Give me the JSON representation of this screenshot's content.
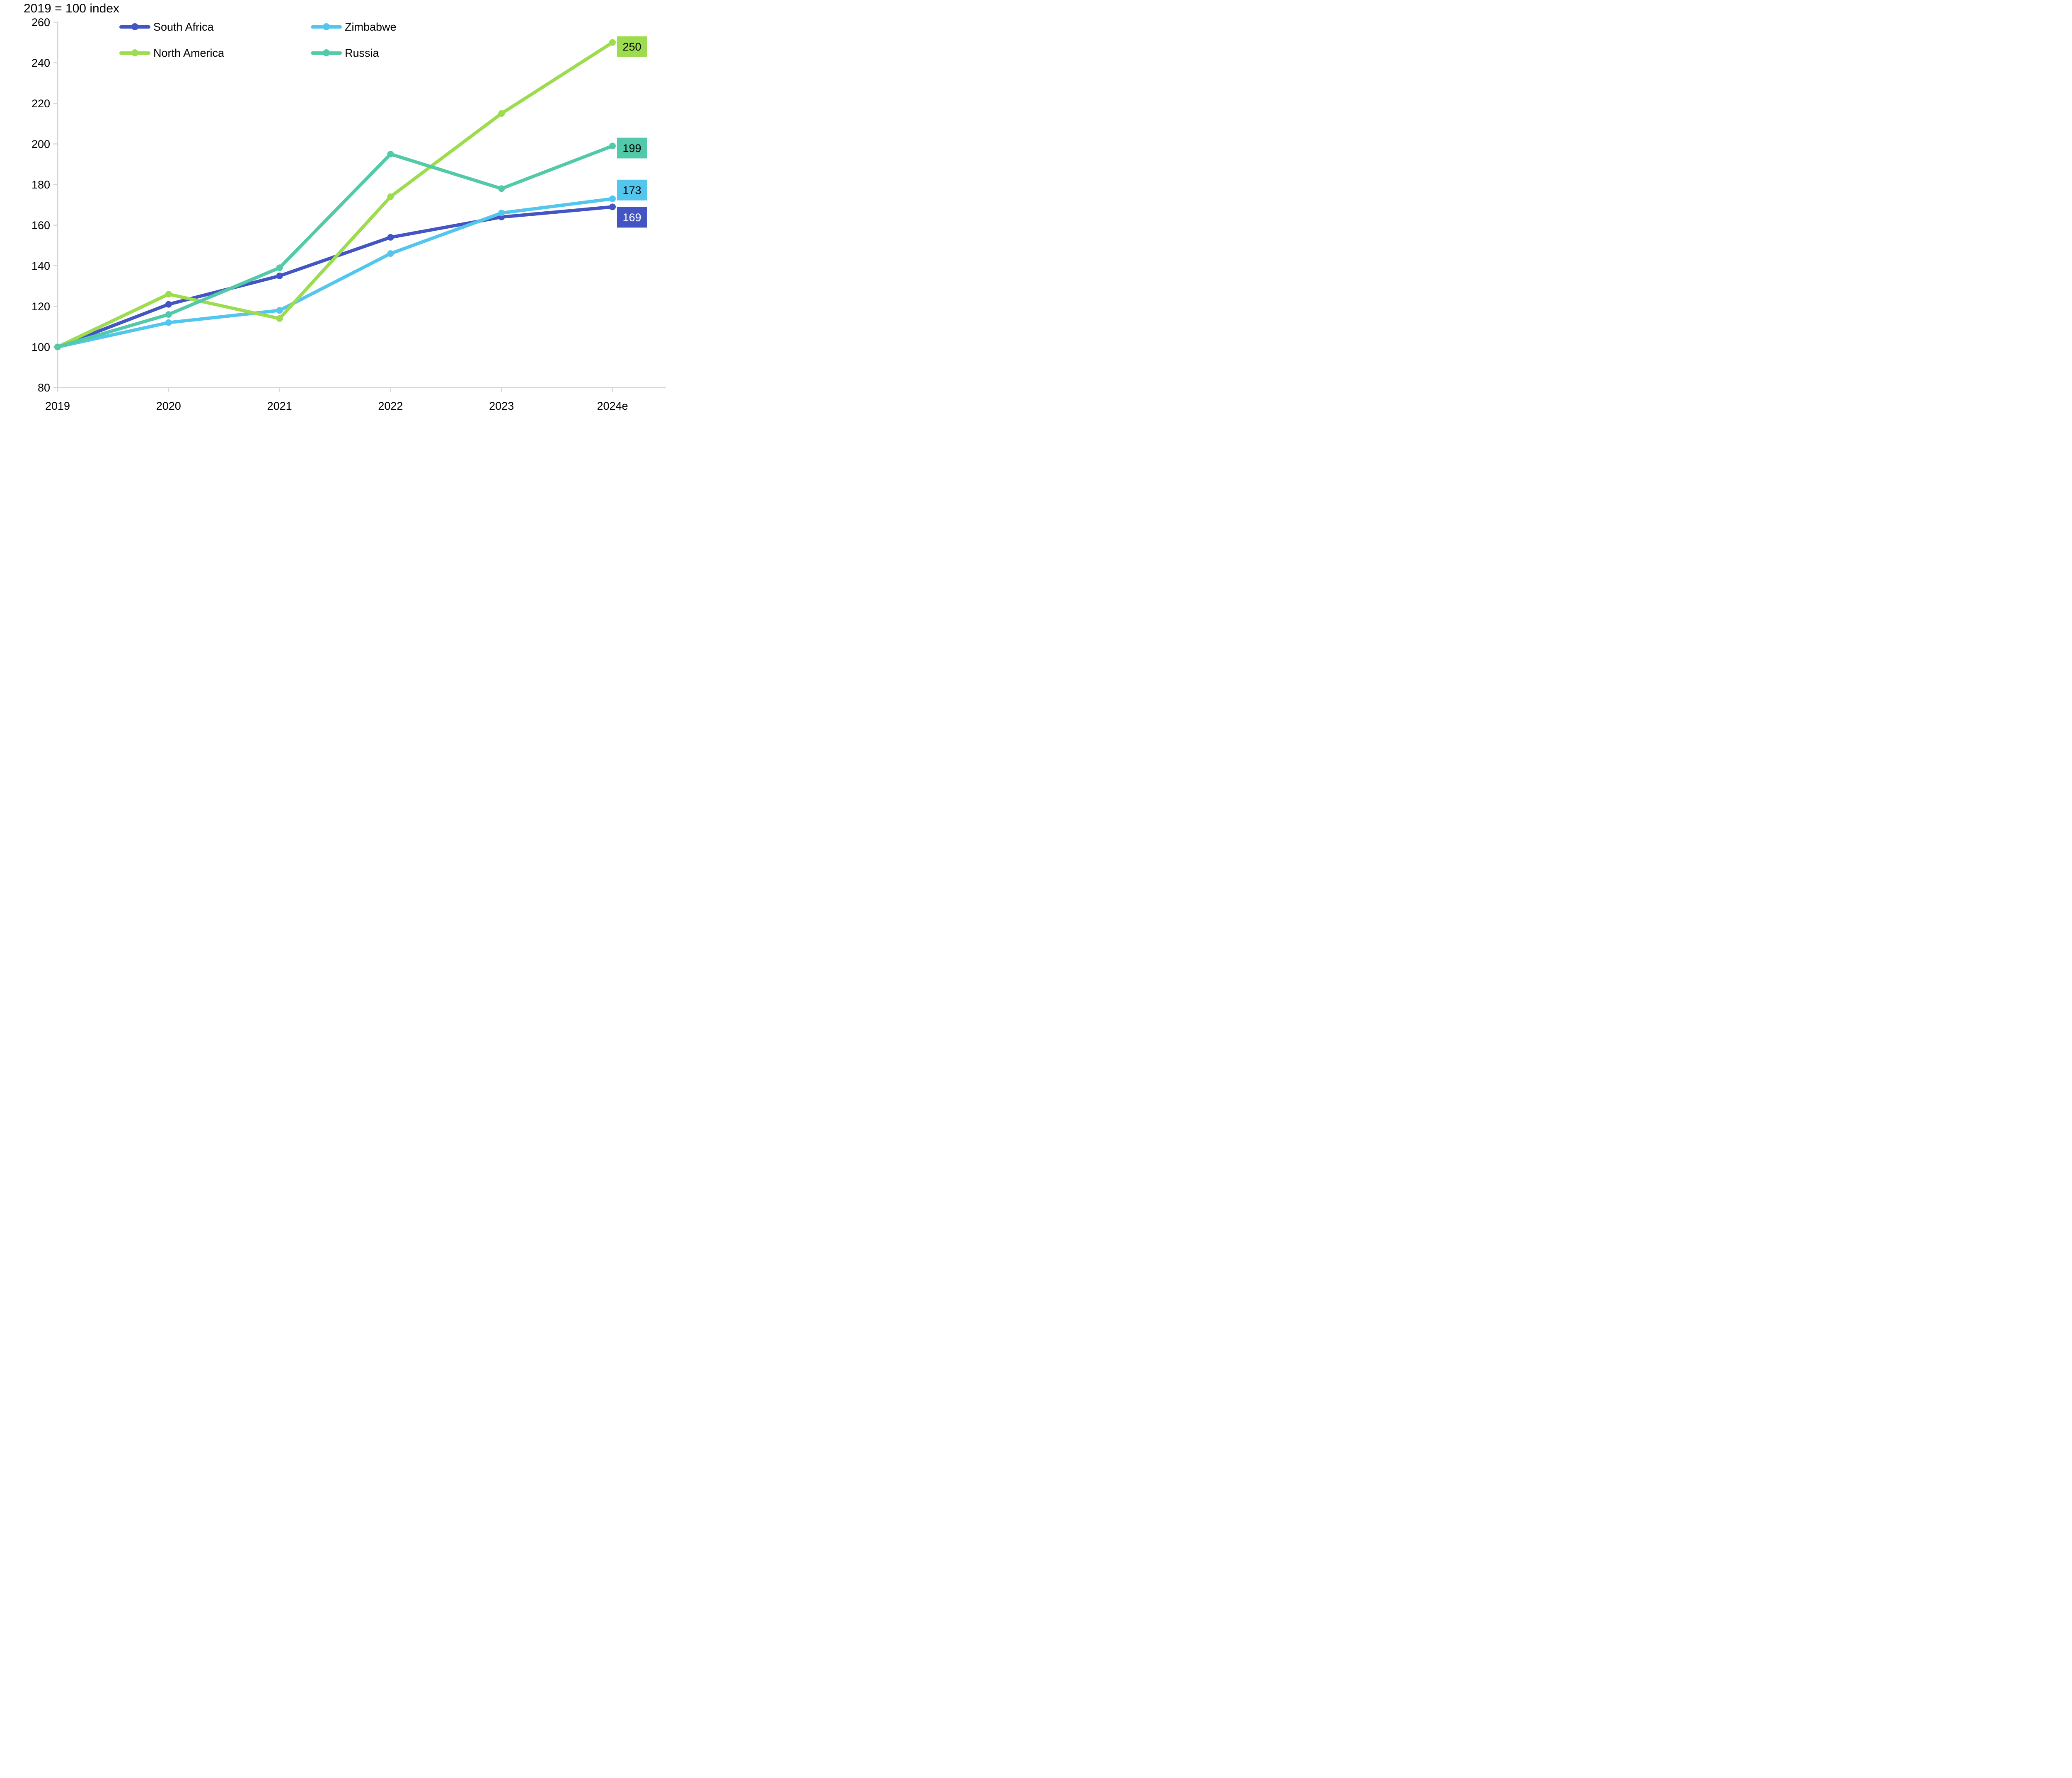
{
  "title": "2019 = 100 index",
  "chart_data": {
    "type": "line",
    "title": "2019 = 100 index",
    "categories": [
      "2019",
      "2020",
      "2021",
      "2022",
      "2023",
      "2024e"
    ],
    "series": [
      {
        "name": "South Africa",
        "color": "#4355c2",
        "values": [
          100,
          121,
          135,
          154,
          164,
          169
        ],
        "end_label": {
          "text": "169",
          "text_color": "#ffffff",
          "offset": 25
        }
      },
      {
        "name": "Zimbabwe",
        "color": "#53c6ee",
        "values": [
          100,
          112,
          118,
          146,
          166,
          173
        ],
        "end_label": {
          "text": "173",
          "text_color": "#000000",
          "offset": -21
        }
      },
      {
        "name": "North America",
        "color": "#9cdc4e",
        "values": [
          100,
          126,
          114,
          174,
          215,
          250
        ],
        "end_label": {
          "text": "250",
          "text_color": "#000000",
          "offset": 10
        }
      },
      {
        "name": "Russia",
        "color": "#52c9a8",
        "values": [
          100,
          116,
          139,
          195,
          178,
          199
        ],
        "end_label": {
          "text": "199",
          "text_color": "#000000",
          "offset": 5
        }
      }
    ],
    "ylim": [
      80,
      260
    ],
    "yticks": [
      80,
      100,
      120,
      140,
      160,
      180,
      200,
      220,
      240,
      260
    ],
    "axis_color": "#d6d6d6",
    "text_color": "#000000",
    "legend_position": "top-inside",
    "grid": false
  }
}
